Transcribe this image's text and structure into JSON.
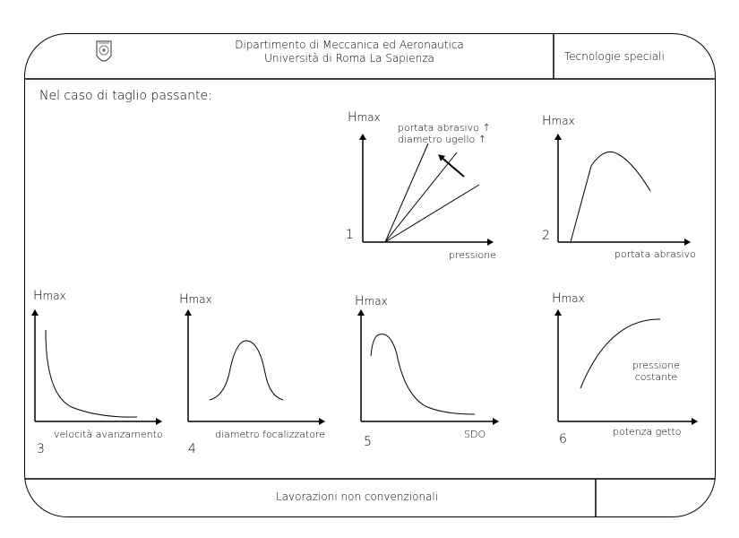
{
  "header": {
    "department_line1": "Dipartimento di Meccanica ed Aeronautica",
    "department_line2": "Università di Roma La Sapienza",
    "course": "Tecnologie speciali"
  },
  "footer": {
    "title": "Lavorazioni non convenzionali"
  },
  "intro": "Nel caso di taglio passante:",
  "y_label": {
    "h": "H",
    "max": "max"
  },
  "plots": [
    {
      "number": "1",
      "xlabel": "pressione",
      "annotation_line1": "portata abrasivo ↑",
      "annotation_line2": "diametro ugello ↑"
    },
    {
      "number": "2",
      "xlabel": "portata abrasivo"
    },
    {
      "number": "3",
      "xlabel": "velocità avanzamento"
    },
    {
      "number": "4",
      "xlabel": "diametro focalizzatore"
    },
    {
      "number": "5",
      "xlabel": "SDO"
    },
    {
      "number": "6",
      "xlabel": "potenza getto",
      "annotation_line1": "pressione",
      "annotation_line2": "costante"
    }
  ],
  "icons": {
    "logo": "university-seal-icon"
  }
}
